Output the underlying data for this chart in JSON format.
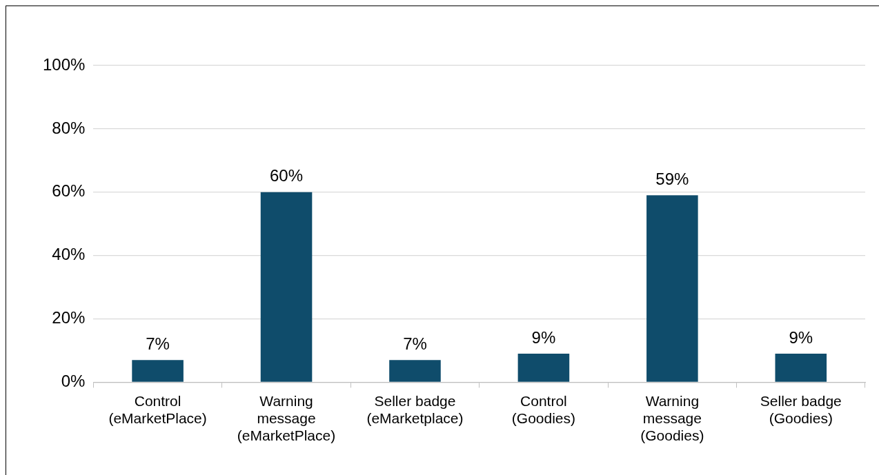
{
  "chart_data": {
    "type": "bar",
    "categories": [
      "Control (eMarketPlace)",
      "Warning message (eMarketPlace)",
      "Seller badge (eMarketplace)",
      "Control (Goodies)",
      "Warning message (Goodies)",
      "Seller badge (Goodies)"
    ],
    "values": [
      7,
      60,
      7,
      9,
      59,
      9
    ],
    "value_labels": [
      "7%",
      "60%",
      "7%",
      "9%",
      "59%",
      "9%"
    ],
    "color": "#0f4c6b",
    "ylim": [
      0,
      100
    ],
    "yticks": [
      {
        "value": 0,
        "label": "0%"
      },
      {
        "value": 20,
        "label": "20%"
      },
      {
        "value": 40,
        "label": "40%"
      },
      {
        "value": 60,
        "label": "60%"
      },
      {
        "value": 80,
        "label": "80%"
      },
      {
        "value": 100,
        "label": "100%"
      }
    ],
    "grid": "y",
    "legend": false
  }
}
